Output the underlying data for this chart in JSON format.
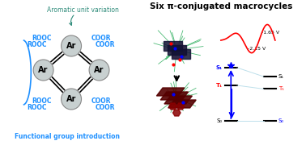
{
  "title": "Six π-conjugated macrocycles",
  "aromatic_label": "Aromatic unit variation",
  "functional_label": "Functional group introduction",
  "cv_label1": "-1.65 V",
  "cv_label2": "-2.15 V",
  "energy_labels": [
    "S₁",
    "T₁",
    "S₁",
    "T₁",
    "S₀",
    "S₀"
  ],
  "bg_color": "#ffffff",
  "blue_color": "#1e90ff",
  "teal_color": "#2e8b7a",
  "red_color": "#cc0000",
  "circle_color": "#c8d0d0",
  "circle_edge": "#888888",
  "text_color_blue": "#1e90ff",
  "text_color_teal": "#2e8b7a"
}
